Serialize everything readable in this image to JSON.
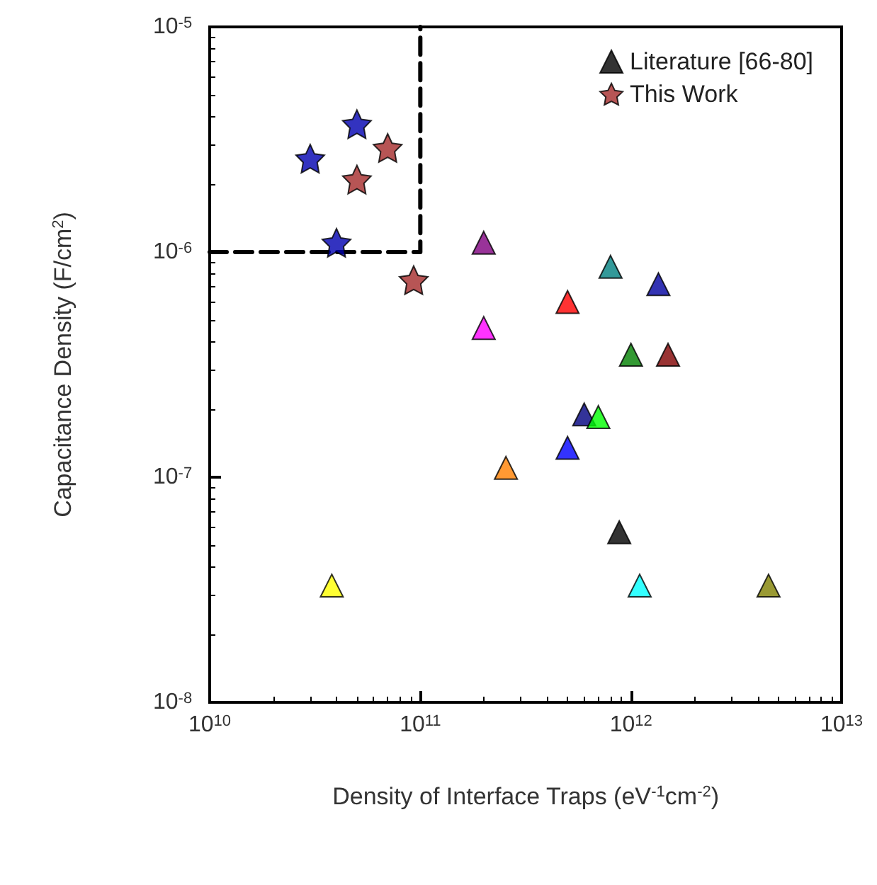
{
  "chart_data": {
    "type": "scatter",
    "xlabel": "Density of Interface Traps (eV$^{-1}$cm$^{-2}$)",
    "ylabel": "Capacitance Density (F/cm$^{2}$)",
    "log": "xy",
    "grid": false,
    "legend": "top right",
    "xlim": [
      10000000000.0,
      10000000000000.0
    ],
    "xticks": [
      {
        "value": 10000000000.0,
        "label": "10$^{10}$"
      },
      {
        "value": 100000000000.0,
        "label": "10$^{11}$"
      },
      {
        "value": 1000000000000.0,
        "label": "10$^{12}$"
      },
      {
        "value": 10000000000000.0,
        "label": "10$^{13}$"
      }
    ],
    "ylim": [
      1e-08,
      1e-05
    ],
    "yticks": [
      {
        "value": 1e-08,
        "label": "10$^{-8}$"
      },
      {
        "value": 1e-07,
        "label": "10$^{-7}$"
      },
      {
        "value": 1e-06,
        "label": "10$^{-6}$"
      },
      {
        "value": 1e-05,
        "label": "10$^{-5}$"
      }
    ],
    "series": [
      {
        "name": "Literature [66-80]",
        "marker": "triangle",
        "color": "#000000",
        "x": [
          200000000000.0,
          800000000000.0,
          1350000000000.0,
          500000000000.0,
          200000000000.0,
          1000000000000.0,
          1500000000000.0,
          600000000000.0,
          700000000000.0,
          500000000000.0,
          255000000000.0,
          880000000000.0,
          38000000000.0,
          1100000000000.0,
          4500000000000.0
        ],
        "values": [
          1.1e-06,
          8.6e-07,
          7.2e-07,
          6e-07,
          4.6e-07,
          3.5e-07,
          3.5e-07,
          1.9e-07,
          1.85e-07,
          1.35e-07,
          1.1e-07,
          5.7e-08,
          3.3e-08,
          3.3e-08,
          3.3e-08
        ],
        "colors": [
          "#800080",
          "#008080",
          "#0000a0",
          "#ff0000",
          "#ff00ff",
          "#008000",
          "#800000",
          "#000080",
          "#00ff00",
          "#0000ff",
          "#ff8000",
          "#000000",
          "#ffff00",
          "#00ffff",
          "#808000"
        ]
      },
      {
        "name": "This Work",
        "marker": "star",
        "color": "#a52a2a",
        "x": [
          30000000000.0,
          50000000000.0,
          40000000000.0,
          70000000000.0,
          50000000000.0,
          93000000000.0
        ],
        "values": [
          2.6e-06,
          3.7e-06,
          1.1e-06,
          2.9e-06,
          2.1e-06,
          7.5e-07
        ],
        "colors": [
          "#0000b0",
          "#0000b0",
          "#0000b0",
          "#a52a2a",
          "#a52a2a",
          "#a52a2a"
        ]
      },
      {
        "type": "line",
        "marker": "none",
        "line_style": "dashed",
        "color": "#000000",
        "x": [
          10000000000.0,
          100000000000.0,
          100000000000.0
        ],
        "values": [
          1e-06,
          1e-06,
          1e-05
        ]
      }
    ]
  }
}
